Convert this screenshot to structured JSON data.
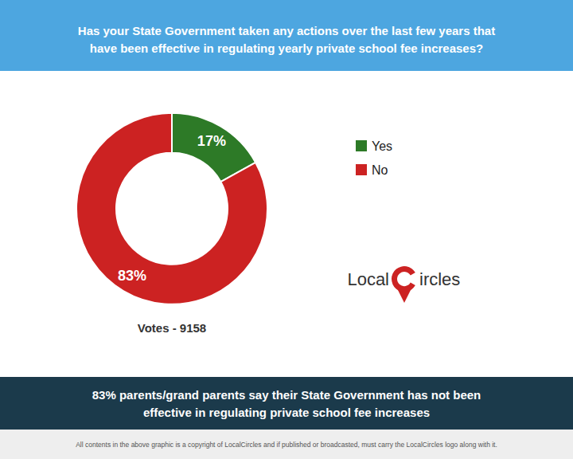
{
  "chart_data": {
    "type": "pie",
    "title": "Has your State Government taken any actions over the last few years that\nhave been effective in regulating yearly private school fee increases?",
    "categories": [
      "Yes",
      "No"
    ],
    "values": [
      17,
      83
    ],
    "value_labels": [
      "17%",
      "83%"
    ],
    "colors": [
      "#2d7a27",
      "#cc2222"
    ],
    "data_labels": true,
    "legend": "right",
    "annotations": [
      "Votes - 9158",
      "83% parents/grand parents say their State Government has not been\neffective in regulating private school fee increases",
      "All contents in the above graphic is a copyright of LocalCircles and if published or broadcasted, must carry the LocalCircles logo along with it.",
      "Local",
      "ircles"
    ]
  }
}
